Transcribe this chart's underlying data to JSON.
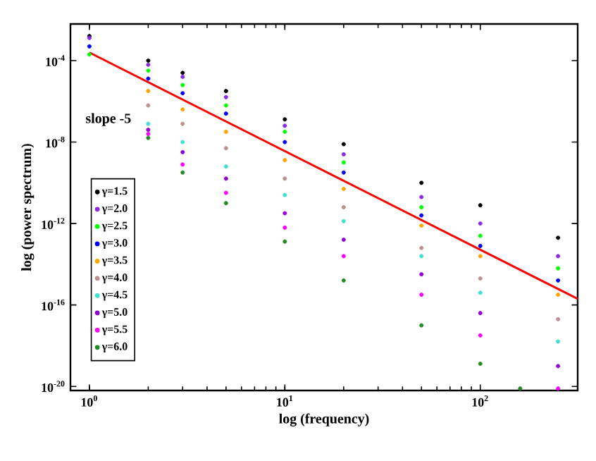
{
  "chart_data": {
    "type": "scatter",
    "xlabel": "log (frequency)",
    "ylabel": "log (power spectrum)",
    "log": "xy",
    "marker": "circle",
    "legend": "bottom left",
    "grid": false,
    "xlim": [
      0.8,
      315
    ],
    "ylim": [
      6.3e-21,
      0.0063
    ],
    "xticks": [
      {
        "value": 1,
        "label": "10$^{0}$"
      },
      {
        "value": 10,
        "label": "10$^{1}$"
      },
      {
        "value": 100,
        "label": "10$^{2}$"
      }
    ],
    "yticks": [
      {
        "value": 1e-20,
        "label": "10$^{-20}$"
      },
      {
        "value": 1e-16,
        "label": "10$^{-16}$"
      },
      {
        "value": 1e-12,
        "label": "10$^{-12}$"
      },
      {
        "value": 1e-08,
        "label": "10$^{-8}$"
      },
      {
        "value": 0.0001,
        "label": "10$^{-4}$"
      }
    ],
    "x": [
      1,
      2,
      3,
      5,
      10,
      20,
      50,
      100,
      250
    ],
    "annotations": [
      "slope -5"
    ],
    "series": [
      {
        "name": "γ=1.5",
        "color": "#000000",
        "values": [
          0.0016,
          0.0001,
          2.5e-05,
          3.2e-06,
          1.3e-07,
          7.9e-09,
          1e-10,
          7.9e-12,
          2e-13
        ]
      },
      {
        "name": "γ=2.0",
        "color": "#8a2be2",
        "values": [
          0.0013,
          6.3e-05,
          1.6e-05,
          1.6e-06,
          6.3e-08,
          2.5e-09,
          2e-11,
          1e-12,
          2.5e-14
        ]
      },
      {
        "name": "γ=2.5",
        "color": "#00ff00",
        "values": [
          0.0002,
          3.2e-05,
          6.3e-06,
          6.3e-07,
          3.2e-08,
          1e-09,
          6.3e-12,
          2.5e-13,
          6.3e-15
        ]
      },
      {
        "name": "γ=3.0",
        "color": "#0000ff",
        "values": [
          0.0005,
          1.3e-05,
          2.5e-06,
          2.5e-07,
          1e-08,
          3.2e-10,
          2.5e-12,
          7.9e-14,
          1.6e-15
        ]
      },
      {
        "name": "γ=3.5",
        "color": "#ffa500",
        "values": [
          null,
          3.2e-06,
          4e-07,
          3.2e-08,
          1.3e-09,
          5e-11,
          7.9e-13,
          2.5e-14,
          3.2e-16
        ]
      },
      {
        "name": "γ=4.0",
        "color": "#bc8f8f",
        "values": [
          null,
          6.3e-07,
          7.9e-08,
          5e-09,
          1.6e-10,
          6.3e-12,
          6.3e-14,
          2e-15,
          2e-17
        ]
      },
      {
        "name": "γ=4.5",
        "color": "#40e0d0",
        "values": [
          null,
          7.9e-08,
          1e-08,
          6.3e-10,
          2.5e-11,
          1.3e-12,
          2.5e-14,
          4e-16,
          1.6e-18
        ]
      },
      {
        "name": "γ=5.0",
        "color": "#9400d3",
        "values": [
          null,
          4e-08,
          3.2e-09,
          1.6e-10,
          3.2e-12,
          1.6e-13,
          3.2e-15,
          4e-17,
          1e-19
        ]
      },
      {
        "name": "γ=5.5",
        "color": "#ff00ff",
        "values": [
          null,
          2.5e-08,
          7.9e-10,
          3.2e-11,
          6.3e-13,
          2.5e-14,
          3.2e-16,
          3.2e-18,
          7.9e-21
        ]
      },
      {
        "name": "γ=6.0",
        "color": "#228b22",
        "x": [
          2,
          3,
          5,
          10,
          20,
          50,
          100,
          160
        ],
        "values": [
          1.6e-08,
          3.2e-10,
          1e-11,
          1.3e-13,
          1.6e-15,
          1e-17,
          1.3e-19,
          7.9e-21
        ]
      },
      {
        "type": "line",
        "color": "#ff0000",
        "marker": "none",
        "x": [
          1,
          315
        ],
        "values": [
          0.00025,
          2e-16
        ]
      }
    ]
  }
}
